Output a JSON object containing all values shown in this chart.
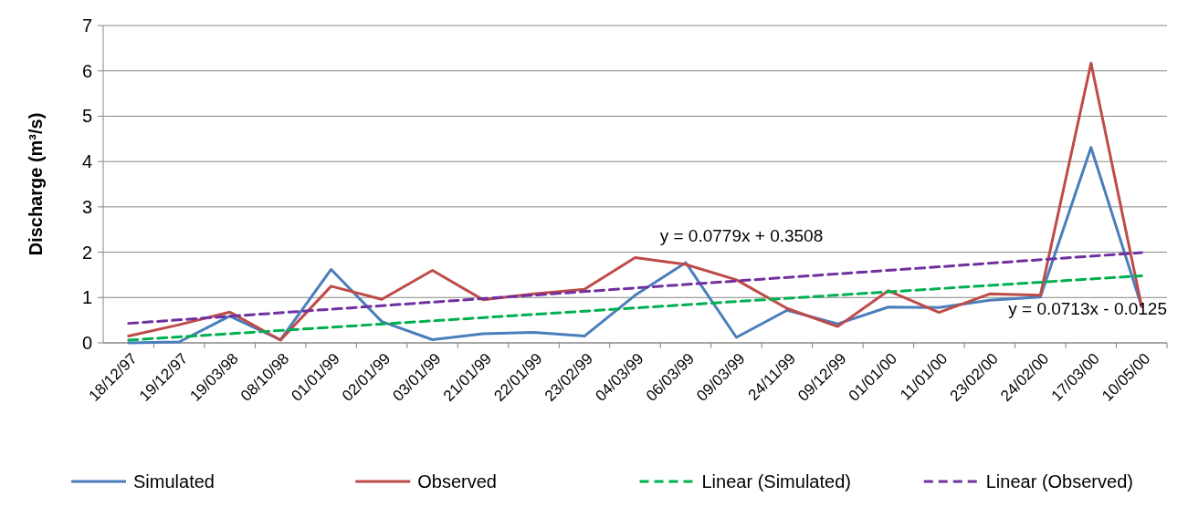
{
  "chart_data": {
    "type": "line",
    "ylabel": "Discharge (m³/s)",
    "categories": [
      "18/12/97",
      "19/12/97",
      "19/03/98",
      "08/10/98",
      "01/01/99",
      "02/01/99",
      "03/01/99",
      "21/01/99",
      "22/01/99",
      "23/02/99",
      "04/03/99",
      "06/03/99",
      "09/03/99",
      "24/11/99",
      "09/12/99",
      "01/01/00",
      "11/01/00",
      "23/02/00",
      "24/02/00",
      "17/03/00",
      "10/05/00"
    ],
    "series": [
      {
        "name": "Simulated",
        "color": "#4a7ebb",
        "line_style": "solid",
        "values": [
          0.0,
          0.02,
          0.59,
          0.07,
          1.62,
          0.47,
          0.07,
          0.2,
          0.23,
          0.15,
          1.05,
          1.77,
          0.12,
          0.72,
          0.42,
          0.79,
          0.78,
          0.94,
          1.01,
          4.31,
          0.8
        ]
      },
      {
        "name": "Observed",
        "color": "#be4b48",
        "line_style": "solid",
        "values": [
          0.15,
          0.4,
          0.68,
          0.06,
          1.25,
          0.96,
          1.6,
          0.95,
          1.08,
          1.18,
          1.88,
          1.73,
          1.39,
          0.76,
          0.36,
          1.15,
          0.67,
          1.08,
          1.05,
          6.17,
          0.8
        ]
      },
      {
        "name": "Linear (Simulated)",
        "color": "#00b050",
        "line_style": "dashed",
        "x": [
          "18/12/97",
          "10/05/00"
        ],
        "values": [
          0.06,
          1.48
        ]
      },
      {
        "name": "Linear (Observed)",
        "color": "#7030a0",
        "line_style": "dashed",
        "x": [
          "18/12/97",
          "10/05/00"
        ],
        "values": [
          0.43,
          1.99
        ]
      }
    ],
    "annotations": [
      "y = 0.0779x + 0.3508",
      "y = 0.0713x - 0.0125"
    ],
    "ylim": [
      0,
      7
    ],
    "yticks": [
      0,
      1,
      2,
      3,
      4,
      5,
      6,
      7
    ],
    "grid": "y",
    "legend": "bottom",
    "marker": "none"
  }
}
